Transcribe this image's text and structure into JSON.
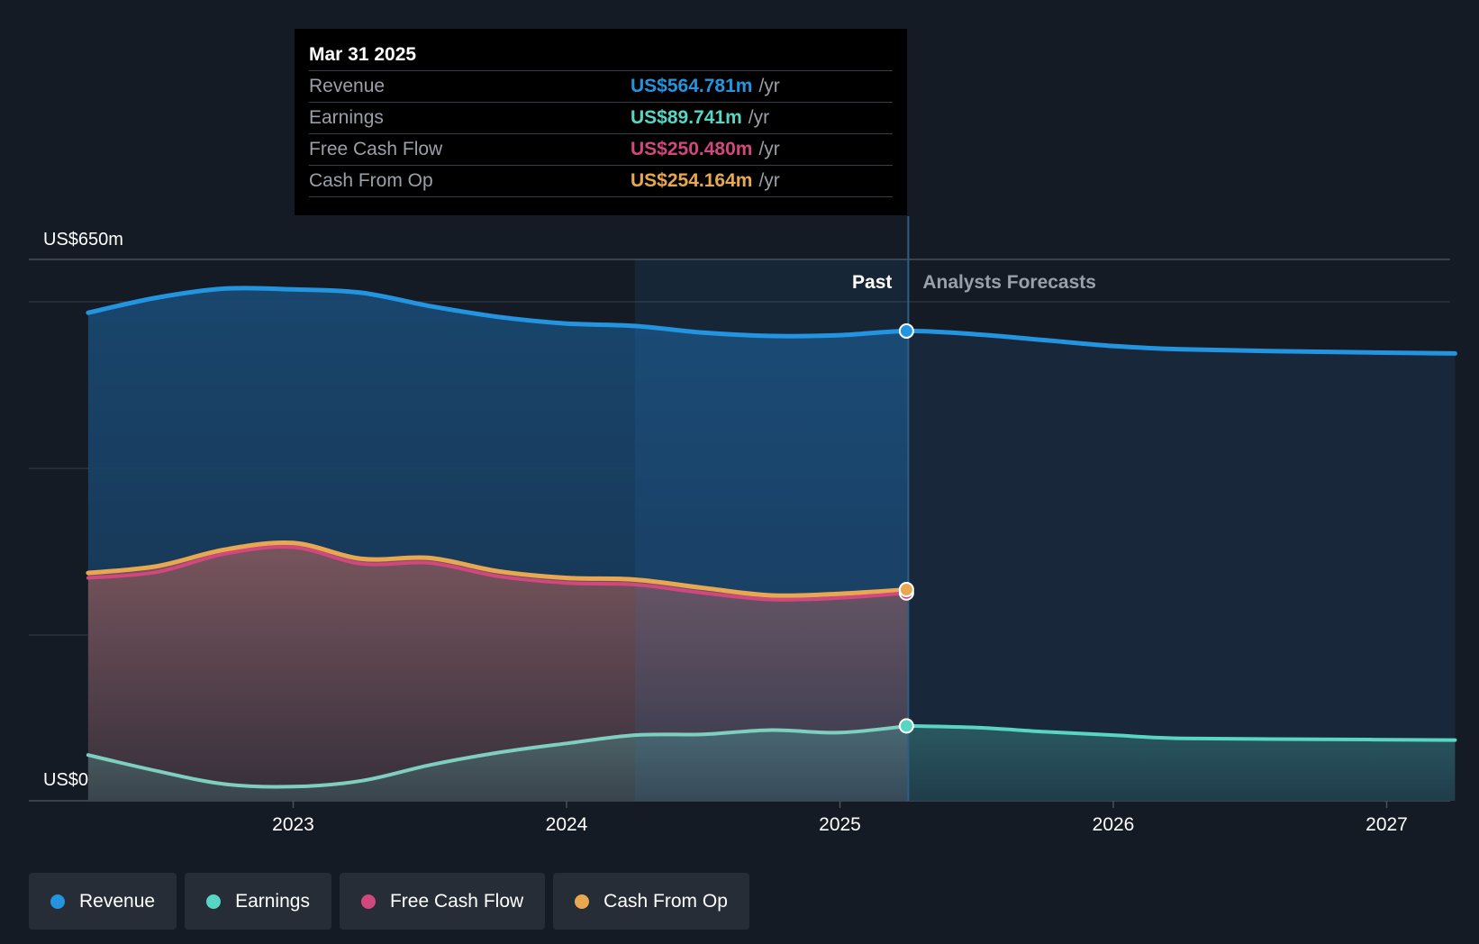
{
  "chart_data": {
    "type": "area",
    "title": "",
    "y_axis": {
      "max_label": "US$650m",
      "min_label": "US$0",
      "ylim": [
        0,
        650
      ]
    },
    "x_axis": {
      "ticks": [
        "2023",
        "2024",
        "2025",
        "2026",
        "2027"
      ],
      "xlim": [
        2022.0,
        2027.25
      ]
    },
    "sections": {
      "past_label": "Past",
      "forecast_label": "Analysts Forecasts",
      "divider_x": 2025.25
    },
    "series": [
      {
        "name": "Revenue",
        "color": "#2394df",
        "forecast": true,
        "points": [
          [
            2022.25,
            587
          ],
          [
            2022.5,
            605
          ],
          [
            2022.75,
            616
          ],
          [
            2023.0,
            615
          ],
          [
            2023.25,
            611
          ],
          [
            2023.5,
            595
          ],
          [
            2023.75,
            582
          ],
          [
            2024.0,
            574
          ],
          [
            2024.25,
            571
          ],
          [
            2024.5,
            563
          ],
          [
            2024.75,
            559
          ],
          [
            2025.0,
            560
          ],
          [
            2025.25,
            565
          ],
          [
            2025.5,
            561
          ],
          [
            2025.75,
            554
          ],
          [
            2026.0,
            547
          ],
          [
            2026.25,
            543
          ],
          [
            2026.75,
            540
          ],
          [
            2027.25,
            538
          ]
        ]
      },
      {
        "name": "Earnings",
        "color": "#58d5c3",
        "forecast": true,
        "points": [
          [
            2022.25,
            55
          ],
          [
            2022.5,
            36
          ],
          [
            2022.75,
            20
          ],
          [
            2023.0,
            17
          ],
          [
            2023.25,
            24
          ],
          [
            2023.5,
            43
          ],
          [
            2023.75,
            58
          ],
          [
            2024.0,
            69
          ],
          [
            2024.25,
            79
          ],
          [
            2024.5,
            80
          ],
          [
            2024.75,
            85
          ],
          [
            2025.0,
            82
          ],
          [
            2025.25,
            90
          ],
          [
            2025.5,
            88
          ],
          [
            2025.75,
            83
          ],
          [
            2026.0,
            79
          ],
          [
            2026.25,
            75
          ],
          [
            2026.75,
            74
          ],
          [
            2027.25,
            73
          ]
        ]
      },
      {
        "name": "Free Cash Flow",
        "color": "#d1477e",
        "forecast": false,
        "points": [
          [
            2022.25,
            268
          ],
          [
            2022.5,
            275
          ],
          [
            2022.75,
            297
          ],
          [
            2023.0,
            305
          ],
          [
            2023.25,
            285
          ],
          [
            2023.5,
            286
          ],
          [
            2023.75,
            270
          ],
          [
            2024.0,
            262
          ],
          [
            2024.25,
            260
          ],
          [
            2024.5,
            250
          ],
          [
            2024.75,
            242
          ],
          [
            2025.0,
            244
          ],
          [
            2025.25,
            250
          ]
        ]
      },
      {
        "name": "Cash From Op",
        "color": "#e8a851",
        "forecast": false,
        "points": [
          [
            2022.25,
            274
          ],
          [
            2022.5,
            282
          ],
          [
            2022.75,
            302
          ],
          [
            2023.0,
            310
          ],
          [
            2023.25,
            291
          ],
          [
            2023.5,
            292
          ],
          [
            2023.75,
            276
          ],
          [
            2024.0,
            268
          ],
          [
            2024.25,
            266
          ],
          [
            2024.5,
            256
          ],
          [
            2024.75,
            247
          ],
          [
            2025.0,
            249
          ],
          [
            2025.25,
            254
          ]
        ]
      }
    ]
  },
  "tooltip": {
    "date": "Mar 31 2025",
    "rows": [
      {
        "label": "Revenue",
        "value": "US$564.781m",
        "unit": "/yr",
        "color": "#2394df"
      },
      {
        "label": "Earnings",
        "value": "US$89.741m",
        "unit": "/yr",
        "color": "#58d5c3"
      },
      {
        "label": "Free Cash Flow",
        "value": "US$250.480m",
        "unit": "/yr",
        "color": "#d1477e"
      },
      {
        "label": "Cash From Op",
        "value": "US$254.164m",
        "unit": "/yr",
        "color": "#e8a851"
      }
    ]
  },
  "legend": [
    {
      "label": "Revenue",
      "color": "#2394df"
    },
    {
      "label": "Earnings",
      "color": "#58d5c3"
    },
    {
      "label": "Free Cash Flow",
      "color": "#d1477e"
    },
    {
      "label": "Cash From Op",
      "color": "#e8a851"
    }
  ]
}
